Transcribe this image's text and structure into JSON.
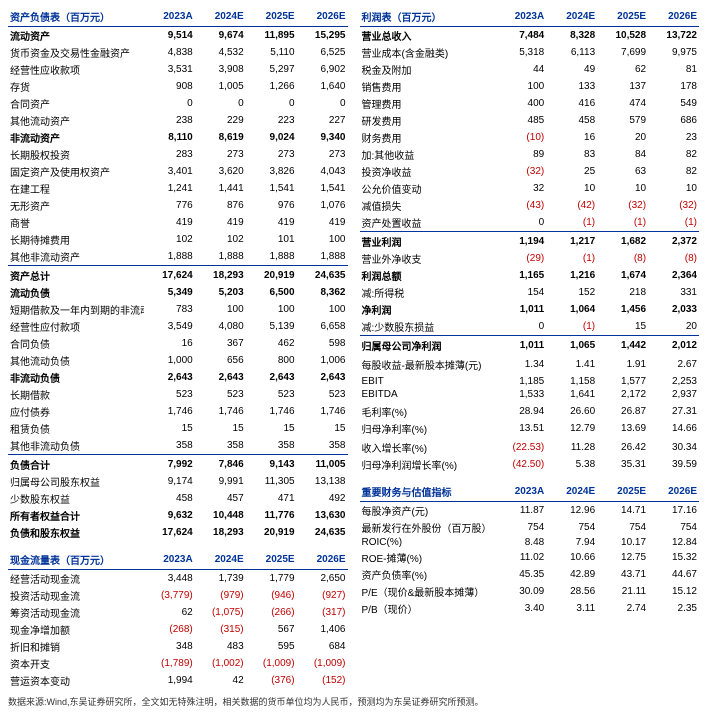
{
  "years": [
    "2023A",
    "2024E",
    "2025E",
    "2026E"
  ],
  "footnote": "数据来源:Wind,东吴证券研究所，全文如无特殊注明，相关数据的货币单位均为人民币，预测均为东吴证券研究所预测。",
  "left": [
    {
      "title": "资产负债表（百万元）",
      "rows": [
        {
          "l": "流动资产",
          "v": [
            "9,514",
            "9,674",
            "11,895",
            "15,295"
          ],
          "b": 1,
          "top": 1
        },
        {
          "l": "货币资金及交易性金融资产",
          "v": [
            "4,838",
            "4,532",
            "5,110",
            "6,525"
          ]
        },
        {
          "l": "经营性应收款项",
          "v": [
            "3,531",
            "3,908",
            "5,297",
            "6,902"
          ]
        },
        {
          "l": "存货",
          "v": [
            "908",
            "1,005",
            "1,266",
            "1,640"
          ]
        },
        {
          "l": "合同资产",
          "v": [
            "0",
            "0",
            "0",
            "0"
          ]
        },
        {
          "l": "其他流动资产",
          "v": [
            "238",
            "229",
            "223",
            "227"
          ]
        },
        {
          "l": "非流动资产",
          "v": [
            "8,110",
            "8,619",
            "9,024",
            "9,340"
          ],
          "b": 1
        },
        {
          "l": "长期股权投资",
          "v": [
            "283",
            "273",
            "273",
            "273"
          ]
        },
        {
          "l": "固定资产及使用权资产",
          "v": [
            "3,401",
            "3,620",
            "3,826",
            "4,043"
          ]
        },
        {
          "l": "在建工程",
          "v": [
            "1,241",
            "1,441",
            "1,541",
            "1,541"
          ]
        },
        {
          "l": "无形资产",
          "v": [
            "776",
            "876",
            "976",
            "1,076"
          ]
        },
        {
          "l": "商誉",
          "v": [
            "419",
            "419",
            "419",
            "419"
          ]
        },
        {
          "l": "长期待摊费用",
          "v": [
            "102",
            "102",
            "101",
            "100"
          ]
        },
        {
          "l": "其他非流动资产",
          "v": [
            "1,888",
            "1,888",
            "1,888",
            "1,888"
          ]
        },
        {
          "l": "资产总计",
          "v": [
            "17,624",
            "18,293",
            "20,919",
            "24,635"
          ],
          "b": 1,
          "sec": 1
        },
        {
          "l": "流动负债",
          "v": [
            "5,349",
            "5,203",
            "6,500",
            "8,362"
          ],
          "b": 1
        },
        {
          "l": "短期借款及一年内到期的非流动负债",
          "v": [
            "783",
            "100",
            "100",
            "100"
          ]
        },
        {
          "l": "经营性应付款项",
          "v": [
            "3,549",
            "4,080",
            "5,139",
            "6,658"
          ]
        },
        {
          "l": "合同负债",
          "v": [
            "16",
            "367",
            "462",
            "598"
          ]
        },
        {
          "l": "其他流动负债",
          "v": [
            "1,000",
            "656",
            "800",
            "1,006"
          ]
        },
        {
          "l": "非流动负债",
          "v": [
            "2,643",
            "2,643",
            "2,643",
            "2,643"
          ],
          "b": 1
        },
        {
          "l": "长期借款",
          "v": [
            "523",
            "523",
            "523",
            "523"
          ]
        },
        {
          "l": "应付债券",
          "v": [
            "1,746",
            "1,746",
            "1,746",
            "1,746"
          ]
        },
        {
          "l": "租赁负债",
          "v": [
            "15",
            "15",
            "15",
            "15"
          ]
        },
        {
          "l": "其他非流动负债",
          "v": [
            "358",
            "358",
            "358",
            "358"
          ]
        },
        {
          "l": "负债合计",
          "v": [
            "7,992",
            "7,846",
            "9,143",
            "11,005"
          ],
          "b": 1,
          "sec": 1
        },
        {
          "l": "归属母公司股东权益",
          "v": [
            "9,174",
            "9,991",
            "11,305",
            "13,138"
          ]
        },
        {
          "l": "少数股东权益",
          "v": [
            "458",
            "457",
            "471",
            "492"
          ]
        },
        {
          "l": "所有者权益合计",
          "v": [
            "9,632",
            "10,448",
            "11,776",
            "13,630"
          ],
          "b": 1
        },
        {
          "l": "负债和股东权益",
          "v": [
            "17,624",
            "18,293",
            "20,919",
            "24,635"
          ],
          "b": 1
        }
      ]
    },
    {
      "title": "现金流量表（百万元）",
      "rows": [
        {
          "l": "经营活动现金流",
          "v": [
            "3,448",
            "1,739",
            "1,779",
            "2,650"
          ]
        },
        {
          "l": "投资活动现金流",
          "v": [
            "(3,779)",
            "(979)",
            "(946)",
            "(927)"
          ],
          "neg": [
            1,
            1,
            1,
            1
          ]
        },
        {
          "l": "筹资活动现金流",
          "v": [
            "62",
            "(1,075)",
            "(266)",
            "(317)"
          ],
          "neg": [
            0,
            1,
            1,
            1
          ]
        },
        {
          "l": "现金净增加额",
          "v": [
            "(268)",
            "(315)",
            "567",
            "1,406"
          ],
          "neg": [
            1,
            1,
            0,
            0
          ]
        },
        {
          "l": "折旧和摊销",
          "v": [
            "348",
            "483",
            "595",
            "684"
          ]
        },
        {
          "l": "资本开支",
          "v": [
            "(1,789)",
            "(1,002)",
            "(1,009)",
            "(1,009)"
          ],
          "neg": [
            1,
            1,
            1,
            1
          ]
        },
        {
          "l": "营运资本变动",
          "v": [
            "1,994",
            "42",
            "(376)",
            "(152)"
          ],
          "neg": [
            0,
            0,
            1,
            1
          ]
        }
      ]
    }
  ],
  "right": [
    {
      "title": "利润表（百万元）",
      "rows": [
        {
          "l": "营业总收入",
          "v": [
            "7,484",
            "8,328",
            "10,528",
            "13,722"
          ],
          "b": 1,
          "top": 1
        },
        {
          "l": "营业成本(含金融类)",
          "v": [
            "5,318",
            "6,113",
            "7,699",
            "9,975"
          ]
        },
        {
          "l": "税金及附加",
          "v": [
            "44",
            "49",
            "62",
            "81"
          ]
        },
        {
          "l": "销售费用",
          "v": [
            "100",
            "133",
            "137",
            "178"
          ]
        },
        {
          "l": "管理费用",
          "v": [
            "400",
            "416",
            "474",
            "549"
          ]
        },
        {
          "l": "研发费用",
          "v": [
            "485",
            "458",
            "579",
            "686"
          ]
        },
        {
          "l": "财务费用",
          "v": [
            "(10)",
            "16",
            "20",
            "23"
          ],
          "neg": [
            1,
            0,
            0,
            0
          ]
        },
        {
          "l": "加:其他收益",
          "v": [
            "89",
            "83",
            "84",
            "82"
          ]
        },
        {
          "l": "投资净收益",
          "v": [
            "(32)",
            "25",
            "63",
            "82"
          ],
          "neg": [
            1,
            0,
            0,
            0
          ]
        },
        {
          "l": "公允价值变动",
          "v": [
            "32",
            "10",
            "10",
            "10"
          ]
        },
        {
          "l": "减值损失",
          "v": [
            "(43)",
            "(42)",
            "(32)",
            "(32)"
          ],
          "neg": [
            1,
            1,
            1,
            1
          ]
        },
        {
          "l": "资产处置收益",
          "v": [
            "0",
            "(1)",
            "(1)",
            "(1)"
          ],
          "neg": [
            0,
            1,
            1,
            1
          ]
        },
        {
          "l": "营业利润",
          "v": [
            "1,194",
            "1,217",
            "1,682",
            "2,372"
          ],
          "b": 1,
          "sec": 1
        },
        {
          "l": "营业外净收支",
          "v": [
            "(29)",
            "(1)",
            "(8)",
            "(8)"
          ],
          "neg": [
            1,
            1,
            1,
            1
          ]
        },
        {
          "l": "利润总额",
          "v": [
            "1,165",
            "1,216",
            "1,674",
            "2,364"
          ],
          "b": 1
        },
        {
          "l": "减:所得税",
          "v": [
            "154",
            "152",
            "218",
            "331"
          ]
        },
        {
          "l": "净利润",
          "v": [
            "1,011",
            "1,064",
            "1,456",
            "2,033"
          ],
          "b": 1
        },
        {
          "l": "减:少数股东损益",
          "v": [
            "0",
            "(1)",
            "15",
            "20"
          ],
          "neg": [
            0,
            1,
            0,
            0
          ]
        },
        {
          "l": "归属母公司净利润",
          "v": [
            "1,011",
            "1,065",
            "1,442",
            "2,012"
          ],
          "b": 1,
          "sec": 1
        },
        {
          "l": "",
          "v": [
            "",
            "",
            "",
            ""
          ]
        },
        {
          "l": "每股收益-最新股本摊薄(元)",
          "v": [
            "1.34",
            "1.41",
            "1.91",
            "2.67"
          ]
        },
        {
          "l": "",
          "v": [
            "",
            "",
            "",
            ""
          ]
        },
        {
          "l": "EBIT",
          "v": [
            "1,185",
            "1,158",
            "1,577",
            "2,253"
          ]
        },
        {
          "l": "EBITDA",
          "v": [
            "1,533",
            "1,641",
            "2,172",
            "2,937"
          ]
        },
        {
          "l": "",
          "v": [
            "",
            "",
            "",
            ""
          ]
        },
        {
          "l": "毛利率(%)",
          "v": [
            "28.94",
            "26.60",
            "26.87",
            "27.31"
          ]
        },
        {
          "l": "归母净利率(%)",
          "v": [
            "13.51",
            "12.79",
            "13.69",
            "14.66"
          ]
        },
        {
          "l": "",
          "v": [
            "",
            "",
            "",
            ""
          ]
        },
        {
          "l": "收入增长率(%)",
          "v": [
            "(22.53)",
            "11.28",
            "26.42",
            "30.34"
          ],
          "neg": [
            1,
            0,
            0,
            0
          ]
        },
        {
          "l": "归母净利润增长率(%)",
          "v": [
            "(42.50)",
            "5.38",
            "35.31",
            "39.59"
          ],
          "neg": [
            1,
            0,
            0,
            0
          ]
        }
      ]
    },
    {
      "title": "重要财务与估值指标",
      "rows": [
        {
          "l": "每股净资产(元)",
          "v": [
            "11.87",
            "12.96",
            "14.71",
            "17.16"
          ]
        },
        {
          "l": "最新发行在外股份（百万股）",
          "v": [
            "754",
            "754",
            "754",
            "754"
          ]
        },
        {
          "l": "ROIC(%)",
          "v": [
            "8.48",
            "7.94",
            "10.17",
            "12.84"
          ]
        },
        {
          "l": "ROE-摊薄(%)",
          "v": [
            "11.02",
            "10.66",
            "12.75",
            "15.32"
          ]
        },
        {
          "l": "资产负债率(%)",
          "v": [
            "45.35",
            "42.89",
            "43.71",
            "44.67"
          ]
        },
        {
          "l": "P/E（现价&最新股本摊薄）",
          "v": [
            "30.09",
            "28.56",
            "21.11",
            "15.12"
          ]
        },
        {
          "l": "P/B（现价）",
          "v": [
            "3.40",
            "3.11",
            "2.74",
            "2.35"
          ]
        }
      ]
    }
  ]
}
